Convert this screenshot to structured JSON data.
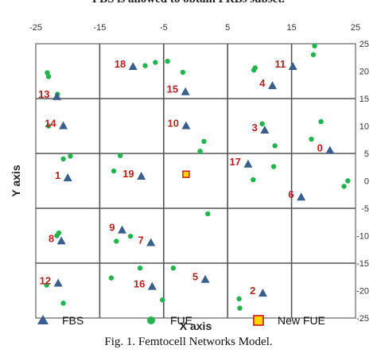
{
  "header_fragment": "FBS is allowed to obtain FRBs subset.",
  "caption": "Fig. 1.    Femtocell Networks Model.",
  "chart_data": {
    "type": "scatter",
    "xlabel": "X axis",
    "ylabel": "Y axis",
    "xlim": [
      -25,
      25
    ],
    "ylim": [
      -25,
      25
    ],
    "xticks": [
      -25,
      -15,
      -5,
      5,
      15,
      25
    ],
    "yticks": [
      25,
      20,
      15,
      10,
      5,
      0,
      -5,
      -10,
      -15,
      -20,
      -25
    ],
    "grid": "cells of 10 units",
    "legend_position": "bottom",
    "colors": {
      "fbs": "#3a5f8c",
      "fue": "#22b44c",
      "new_fue_border": "#cc1111",
      "new_fue_fill": "#ffd500",
      "labels": "#b22222"
    },
    "series": [
      {
        "name": "FBS",
        "marker": "triangle",
        "points": [
          {
            "id": "0",
            "x": 21,
            "y": 5.5
          },
          {
            "id": "1",
            "x": -20,
            "y": 0.5
          },
          {
            "id": "2",
            "x": 10.5,
            "y": -20.5
          },
          {
            "id": "3",
            "x": 10.8,
            "y": 9.2
          },
          {
            "id": "4",
            "x": 12,
            "y": 17.3
          },
          {
            "id": "5",
            "x": 1.5,
            "y": -18
          },
          {
            "id": "6",
            "x": 16.5,
            "y": -3
          },
          {
            "id": "7",
            "x": -7,
            "y": -11.3
          },
          {
            "id": "8",
            "x": -21,
            "y": -11
          },
          {
            "id": "9",
            "x": -11.5,
            "y": -9
          },
          {
            "id": "10",
            "x": -1.5,
            "y": 10
          },
          {
            "id": "11",
            "x": 15.2,
            "y": 20.8
          },
          {
            "id": "12",
            "x": -21.5,
            "y": -18.7
          },
          {
            "id": "13",
            "x": -21.7,
            "y": 15.3
          },
          {
            "id": "14",
            "x": -20.7,
            "y": 10
          },
          {
            "id": "15",
            "x": -1.6,
            "y": 16.2
          },
          {
            "id": "16",
            "x": -6.8,
            "y": -19.3
          },
          {
            "id": "17",
            "x": 8.2,
            "y": 3
          },
          {
            "id": "18",
            "x": -9.8,
            "y": 20.8
          },
          {
            "id": "19",
            "x": -8.5,
            "y": 0.8
          }
        ]
      },
      {
        "name": "FUE",
        "marker": "circle",
        "points": [
          {
            "x": -23.2,
            "y": 19.7
          },
          {
            "x": -23,
            "y": 19
          },
          {
            "x": -21.6,
            "y": 15.8
          },
          {
            "x": -23,
            "y": 10
          },
          {
            "x": -20.7,
            "y": 4
          },
          {
            "x": -19.6,
            "y": 4.5
          },
          {
            "x": -12.8,
            "y": 1.8
          },
          {
            "x": -11.8,
            "y": 4.6
          },
          {
            "x": -7.9,
            "y": 21
          },
          {
            "x": -6.3,
            "y": 21.6
          },
          {
            "x": -4.4,
            "y": 21.8
          },
          {
            "x": -2,
            "y": 19.8
          },
          {
            "x": 1.3,
            "y": 7.2
          },
          {
            "x": 0.7,
            "y": 5.4
          },
          {
            "x": 9.3,
            "y": 20.6
          },
          {
            "x": 9.1,
            "y": 20.2
          },
          {
            "x": 10.4,
            "y": 10.4
          },
          {
            "x": 12.4,
            "y": 6.4
          },
          {
            "x": 12.2,
            "y": 2.6
          },
          {
            "x": 18.1,
            "y": 7.6
          },
          {
            "x": 19.6,
            "y": 10.8
          },
          {
            "x": 18.4,
            "y": 23
          },
          {
            "x": 18.6,
            "y": 24.6
          },
          {
            "x": 23.8,
            "y": 0
          },
          {
            "x": 23.2,
            "y": -1
          },
          {
            "x": 9,
            "y": 0.2
          },
          {
            "x": 1.9,
            "y": -6
          },
          {
            "x": -21.7,
            "y": -10
          },
          {
            "x": -21.4,
            "y": -9.5
          },
          {
            "x": -12.4,
            "y": -11
          },
          {
            "x": -10.2,
            "y": -10.1
          },
          {
            "x": -13.2,
            "y": -17.7
          },
          {
            "x": -8.7,
            "y": -15.9
          },
          {
            "x": -5.2,
            "y": -21.7
          },
          {
            "x": -3.5,
            "y": -15.9
          },
          {
            "x": 6.8,
            "y": -21.5
          },
          {
            "x": 6.9,
            "y": -23.2
          },
          {
            "x": -23.3,
            "y": -19
          },
          {
            "x": -20.7,
            "y": -22.3
          }
        ]
      },
      {
        "name": "New FUE",
        "marker": "square",
        "points": [
          {
            "x": -1.5,
            "y": 1.2
          }
        ]
      }
    ]
  }
}
